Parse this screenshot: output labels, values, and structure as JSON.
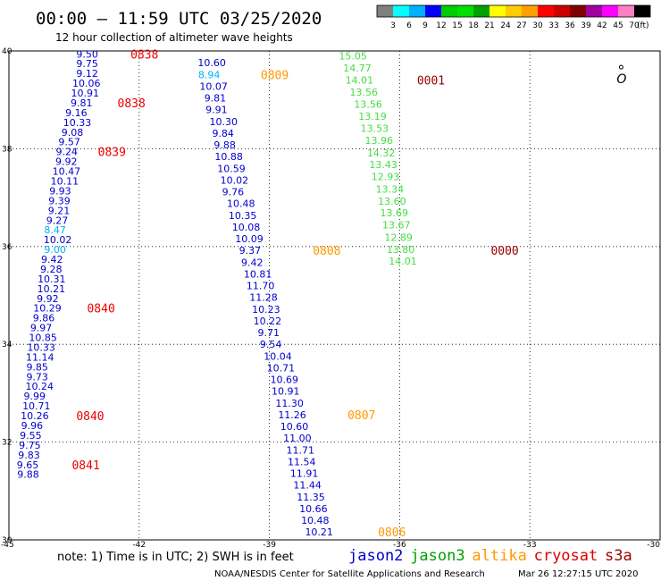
{
  "header": {
    "title": "00:00 – 11:59 UTC 03/25/2020",
    "subtitle": "12 hour collection of altimeter wave heights"
  },
  "colorbar": {
    "labels": [
      "3",
      "6",
      "9",
      "12",
      "15",
      "18",
      "21",
      "24",
      "27",
      "30",
      "33",
      "36",
      "39",
      "42",
      "45",
      "70"
    ],
    "unit": "(ft)",
    "colors": [
      "#808080",
      "#00ffff",
      "#00b0ff",
      "#0000ff",
      "#00cc00",
      "#00e000",
      "#00a000",
      "#ffff00",
      "#ffcc00",
      "#ffa000",
      "#ff0000",
      "#cc0000",
      "#800000",
      "#a000a0",
      "#ff00ff",
      "#ff80c0",
      "#000000"
    ]
  },
  "footer": {
    "note": "note:  1) Time is in UTC;  2) SWH is in feet",
    "credit": "NOAA/NESDIS Center for Satellite Applications and Research",
    "timestamp": "Mar 26 12:27:15 UTC 2020",
    "legend": [
      {
        "name": "jason2",
        "color": "#0000cc"
      },
      {
        "name": "jason3",
        "color": "#00a000"
      },
      {
        "name": "altika",
        "color": "#ff9900"
      },
      {
        "name": "cryosat",
        "color": "#dd0000"
      },
      {
        "name": "s3a",
        "color": "#990000"
      }
    ]
  },
  "chart_data": {
    "type": "scatter",
    "xlim": [
      -45,
      -30
    ],
    "ylim": [
      30,
      40
    ],
    "x_ticks": [
      "-45",
      "-42",
      "-39",
      "-36",
      "-33",
      "-30"
    ],
    "y_ticks": [
      "40",
      "38",
      "36",
      "34",
      "32",
      "30"
    ],
    "grid": "dotted",
    "colors": {
      "blue": "#0000cc",
      "cyan": "#00b0ff",
      "green": "#44dd44",
      "orange": "#ff9900",
      "red": "#ee0000",
      "darkred": "#990000"
    },
    "tracks": [
      {
        "name": "track-1",
        "points": [
          {
            "lon": -43.45,
            "lat": 39.94,
            "v": "9.50",
            "c": "blue"
          },
          {
            "lon": -43.45,
            "lat": 39.74,
            "v": "9.75",
            "c": "blue"
          },
          {
            "lon": -43.45,
            "lat": 39.54,
            "v": "9.12",
            "c": "blue"
          },
          {
            "lon": -43.54,
            "lat": 39.34,
            "v": "10.06",
            "c": "blue"
          },
          {
            "lon": -43.57,
            "lat": 39.14,
            "v": "10.91",
            "c": "blue"
          },
          {
            "lon": -43.58,
            "lat": 38.94,
            "v": "9.81",
            "c": "blue"
          },
          {
            "lon": -43.7,
            "lat": 38.74,
            "v": "9.16",
            "c": "blue"
          },
          {
            "lon": -43.75,
            "lat": 38.54,
            "v": "10.33",
            "c": "blue"
          },
          {
            "lon": -43.79,
            "lat": 38.34,
            "v": "9.08",
            "c": "blue"
          },
          {
            "lon": -43.86,
            "lat": 38.14,
            "v": "9.57",
            "c": "blue"
          },
          {
            "lon": -43.92,
            "lat": 37.94,
            "v": "9.24",
            "c": "blue"
          },
          {
            "lon": -43.93,
            "lat": 37.74,
            "v": "9.92",
            "c": "blue"
          },
          {
            "lon": -44.0,
            "lat": 37.54,
            "v": "10.47",
            "c": "blue"
          },
          {
            "lon": -44.04,
            "lat": 37.34,
            "v": "10.11",
            "c": "blue"
          },
          {
            "lon": -44.07,
            "lat": 37.14,
            "v": "9.93",
            "c": "blue"
          },
          {
            "lon": -44.09,
            "lat": 36.94,
            "v": "9.39",
            "c": "blue"
          },
          {
            "lon": -44.1,
            "lat": 36.74,
            "v": "9.21",
            "c": "blue"
          },
          {
            "lon": -44.14,
            "lat": 36.54,
            "v": "9.27",
            "c": "blue"
          },
          {
            "lon": -44.19,
            "lat": 36.34,
            "v": "8.47",
            "c": "cyan"
          },
          {
            "lon": -44.2,
            "lat": 36.14,
            "v": "10.02",
            "c": "blue"
          },
          {
            "lon": -44.19,
            "lat": 35.94,
            "v": "9.00",
            "c": "cyan"
          },
          {
            "lon": -44.26,
            "lat": 35.74,
            "v": "9.42",
            "c": "blue"
          },
          {
            "lon": -44.28,
            "lat": 35.54,
            "v": "9.28",
            "c": "blue"
          },
          {
            "lon": -44.34,
            "lat": 35.34,
            "v": "10.31",
            "c": "blue"
          },
          {
            "lon": -44.35,
            "lat": 35.14,
            "v": "10.21",
            "c": "blue"
          },
          {
            "lon": -44.36,
            "lat": 34.94,
            "v": "9.92",
            "c": "blue"
          },
          {
            "lon": -44.44,
            "lat": 34.74,
            "v": "10.29",
            "c": "blue"
          },
          {
            "lon": -44.45,
            "lat": 34.54,
            "v": "9.86",
            "c": "blue"
          },
          {
            "lon": -44.51,
            "lat": 34.34,
            "v": "9.97",
            "c": "blue"
          },
          {
            "lon": -44.54,
            "lat": 34.14,
            "v": "10.85",
            "c": "blue"
          },
          {
            "lon": -44.58,
            "lat": 33.94,
            "v": "10.33",
            "c": "blue"
          },
          {
            "lon": -44.61,
            "lat": 33.74,
            "v": "11.14",
            "c": "blue"
          },
          {
            "lon": -44.6,
            "lat": 33.54,
            "v": "9.85",
            "c": "blue"
          },
          {
            "lon": -44.6,
            "lat": 33.34,
            "v": "9.73",
            "c": "blue"
          },
          {
            "lon": -44.62,
            "lat": 33.14,
            "v": "10.24",
            "c": "blue"
          },
          {
            "lon": -44.66,
            "lat": 32.94,
            "v": "9.99",
            "c": "blue"
          },
          {
            "lon": -44.69,
            "lat": 32.74,
            "v": "10.71",
            "c": "blue"
          },
          {
            "lon": -44.73,
            "lat": 32.54,
            "v": "10.26",
            "c": "blue"
          },
          {
            "lon": -44.72,
            "lat": 32.34,
            "v": "9.96",
            "c": "blue"
          },
          {
            "lon": -44.75,
            "lat": 32.14,
            "v": "9.55",
            "c": "blue"
          },
          {
            "lon": -44.77,
            "lat": 31.94,
            "v": "9.75",
            "c": "blue"
          },
          {
            "lon": -44.79,
            "lat": 31.74,
            "v": "9.83",
            "c": "blue"
          },
          {
            "lon": -44.82,
            "lat": 31.54,
            "v": "9.65",
            "c": "blue"
          },
          {
            "lon": -44.81,
            "lat": 31.34,
            "v": "9.88",
            "c": "blue"
          }
        ]
      },
      {
        "name": "track-2",
        "points": [
          {
            "lon": -40.65,
            "lat": 39.76,
            "v": "10.60",
            "c": "blue"
          },
          {
            "lon": -40.64,
            "lat": 39.52,
            "v": "8.94",
            "c": "cyan"
          },
          {
            "lon": -40.61,
            "lat": 39.28,
            "v": "10.07",
            "c": "blue"
          },
          {
            "lon": -40.5,
            "lat": 39.04,
            "v": "9.81",
            "c": "blue"
          },
          {
            "lon": -40.47,
            "lat": 38.8,
            "v": "9.91",
            "c": "blue"
          },
          {
            "lon": -40.38,
            "lat": 38.56,
            "v": "10.30",
            "c": "blue"
          },
          {
            "lon": -40.32,
            "lat": 38.32,
            "v": "9.84",
            "c": "blue"
          },
          {
            "lon": -40.28,
            "lat": 38.08,
            "v": "9.88",
            "c": "blue"
          },
          {
            "lon": -40.26,
            "lat": 37.84,
            "v": "10.88",
            "c": "blue"
          },
          {
            "lon": -40.2,
            "lat": 37.6,
            "v": "10.59",
            "c": "blue"
          },
          {
            "lon": -40.13,
            "lat": 37.36,
            "v": "10.02",
            "c": "blue"
          },
          {
            "lon": -40.09,
            "lat": 37.12,
            "v": "9.76",
            "c": "blue"
          },
          {
            "lon": -39.98,
            "lat": 36.88,
            "v": "10.48",
            "c": "blue"
          },
          {
            "lon": -39.94,
            "lat": 36.64,
            "v": "10.35",
            "c": "blue"
          },
          {
            "lon": -39.86,
            "lat": 36.4,
            "v": "10.08",
            "c": "blue"
          },
          {
            "lon": -39.79,
            "lat": 36.16,
            "v": "10.09",
            "c": "blue"
          },
          {
            "lon": -39.7,
            "lat": 35.92,
            "v": "9.37",
            "c": "blue"
          },
          {
            "lon": -39.65,
            "lat": 35.68,
            "v": "9.42",
            "c": "blue"
          },
          {
            "lon": -39.59,
            "lat": 35.44,
            "v": "10.81",
            "c": "blue"
          },
          {
            "lon": -39.53,
            "lat": 35.2,
            "v": "11.70",
            "c": "blue"
          },
          {
            "lon": -39.46,
            "lat": 34.96,
            "v": "11.28",
            "c": "blue"
          },
          {
            "lon": -39.4,
            "lat": 34.72,
            "v": "10.23",
            "c": "blue"
          },
          {
            "lon": -39.37,
            "lat": 34.48,
            "v": "10.22",
            "c": "blue"
          },
          {
            "lon": -39.27,
            "lat": 34.24,
            "v": "9.71",
            "c": "blue"
          },
          {
            "lon": -39.22,
            "lat": 34.0,
            "v": "9.54",
            "c": "blue"
          },
          {
            "lon": -39.13,
            "lat": 33.76,
            "v": "10.04",
            "c": "blue"
          },
          {
            "lon": -39.06,
            "lat": 33.52,
            "v": "10.71",
            "c": "blue"
          },
          {
            "lon": -38.98,
            "lat": 33.28,
            "v": "10.69",
            "c": "blue"
          },
          {
            "lon": -38.95,
            "lat": 33.04,
            "v": "10.91",
            "c": "blue"
          },
          {
            "lon": -38.86,
            "lat": 32.8,
            "v": "11.30",
            "c": "blue"
          },
          {
            "lon": -38.8,
            "lat": 32.56,
            "v": "11.26",
            "c": "blue"
          },
          {
            "lon": -38.75,
            "lat": 32.32,
            "v": "10.60",
            "c": "blue"
          },
          {
            "lon": -38.68,
            "lat": 32.08,
            "v": "11.00",
            "c": "blue"
          },
          {
            "lon": -38.61,
            "lat": 31.84,
            "v": "11.71",
            "c": "blue"
          },
          {
            "lon": -38.58,
            "lat": 31.6,
            "v": "11.54",
            "c": "blue"
          },
          {
            "lon": -38.52,
            "lat": 31.36,
            "v": "11.91",
            "c": "blue"
          },
          {
            "lon": -38.45,
            "lat": 31.12,
            "v": "11.44",
            "c": "blue"
          },
          {
            "lon": -38.37,
            "lat": 30.88,
            "v": "11.35",
            "c": "blue"
          },
          {
            "lon": -38.31,
            "lat": 30.64,
            "v": "10.66",
            "c": "blue"
          },
          {
            "lon": -38.27,
            "lat": 30.4,
            "v": "10.48",
            "c": "blue"
          },
          {
            "lon": -38.18,
            "lat": 30.16,
            "v": "10.21",
            "c": "blue"
          }
        ]
      },
      {
        "name": "track-3",
        "points": [
          {
            "lon": -37.4,
            "lat": 39.9,
            "v": "15.05",
            "c": "green"
          },
          {
            "lon": -37.3,
            "lat": 39.65,
            "v": "14.77",
            "c": "green"
          },
          {
            "lon": -37.25,
            "lat": 39.41,
            "v": "14.01",
            "c": "green"
          },
          {
            "lon": -37.15,
            "lat": 39.16,
            "v": "13.56",
            "c": "green"
          },
          {
            "lon": -37.05,
            "lat": 38.91,
            "v": "13.56",
            "c": "green"
          },
          {
            "lon": -36.95,
            "lat": 38.67,
            "v": "13.19",
            "c": "green"
          },
          {
            "lon": -36.9,
            "lat": 38.42,
            "v": "13.53",
            "c": "green"
          },
          {
            "lon": -36.8,
            "lat": 38.17,
            "v": "13.96",
            "c": "green"
          },
          {
            "lon": -36.75,
            "lat": 37.92,
            "v": "14.32",
            "c": "green"
          },
          {
            "lon": -36.7,
            "lat": 37.68,
            "v": "13.43",
            "c": "green"
          },
          {
            "lon": -36.65,
            "lat": 37.43,
            "v": "12.93",
            "c": "green"
          },
          {
            "lon": -36.55,
            "lat": 37.18,
            "v": "13.34",
            "c": "green"
          },
          {
            "lon": -36.5,
            "lat": 36.93,
            "v": "13.60",
            "c": "green"
          },
          {
            "lon": -36.45,
            "lat": 36.69,
            "v": "13.69",
            "c": "green"
          },
          {
            "lon": -36.4,
            "lat": 36.44,
            "v": "13.67",
            "c": "green"
          },
          {
            "lon": -36.35,
            "lat": 36.19,
            "v": "12.89",
            "c": "green"
          },
          {
            "lon": -36.3,
            "lat": 35.94,
            "v": "13.80",
            "c": "green"
          },
          {
            "lon": -36.25,
            "lat": 35.7,
            "v": "14.01",
            "c": "green"
          }
        ]
      }
    ],
    "time_labels": [
      {
        "lon": -42.2,
        "lat": 39.94,
        "t": "0838",
        "c": "red"
      },
      {
        "lon": -42.5,
        "lat": 38.94,
        "t": "0838",
        "c": "red"
      },
      {
        "lon": -42.95,
        "lat": 37.94,
        "t": "0839",
        "c": "red"
      },
      {
        "lon": -43.2,
        "lat": 34.74,
        "t": "0840",
        "c": "red"
      },
      {
        "lon": -43.45,
        "lat": 32.54,
        "t": "0840",
        "c": "red"
      },
      {
        "lon": -43.55,
        "lat": 31.54,
        "t": "0841",
        "c": "red"
      },
      {
        "lon": -39.2,
        "lat": 39.52,
        "t": "0809",
        "c": "orange"
      },
      {
        "lon": -38.0,
        "lat": 35.92,
        "t": "0808",
        "c": "orange"
      },
      {
        "lon": -37.2,
        "lat": 32.56,
        "t": "0807",
        "c": "orange"
      },
      {
        "lon": -36.5,
        "lat": 30.16,
        "t": "0806",
        "c": "orange"
      },
      {
        "lon": -35.6,
        "lat": 39.41,
        "t": "0001",
        "c": "darkred"
      },
      {
        "lon": -33.9,
        "lat": 35.92,
        "t": "0000",
        "c": "darkred"
      }
    ],
    "marker": {
      "lon": -31.0,
      "lat": 39.43,
      "glyph": "O"
    }
  }
}
